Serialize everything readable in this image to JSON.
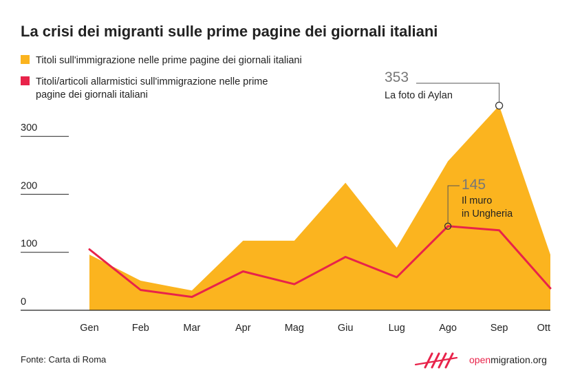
{
  "chart_data": {
    "type": "area",
    "title": "La crisi dei migranti sulle prime pagine dei giornali italiani",
    "categories": [
      "Gen",
      "Feb",
      "Mar",
      "Apr",
      "Mag",
      "Giu",
      "Lug",
      "Ago",
      "Sep",
      "Ott"
    ],
    "series": [
      {
        "name": "Titoli sull'immigrazione nelle prime pagine dei giornali italiani",
        "kind": "area",
        "color": "#fbb41f",
        "values": [
          96,
          51,
          34,
          120,
          120,
          220,
          108,
          257,
          353,
          96
        ]
      },
      {
        "name": "Titoli/articoli allarmistici sull'immigrazione nelle prime pagine dei giornali italiani",
        "kind": "line",
        "color": "#e8234a",
        "values": [
          105,
          35,
          23,
          67,
          45,
          92,
          57,
          145,
          138,
          38
        ]
      }
    ],
    "yticks": [
      "0",
      "100",
      "200",
      "300"
    ],
    "ylim": [
      0,
      360
    ],
    "grid": false,
    "legend_position": "top-left",
    "annotations": [
      {
        "category": "Sep",
        "value_label": "353",
        "text": "La foto di Aylan"
      },
      {
        "category": "Ago",
        "value_label": "145",
        "text_line1": "Il muro",
        "text_line2": "in Ungheria"
      }
    ]
  },
  "legend": {
    "area_label": "Titoli sull'immigrazione nelle prime pagine dei giornali italiani",
    "line_label_1": "Titoli/articoli allarmistici sull'immigrazione nelle prime",
    "line_label_2": "pagine dei giornali italiani"
  },
  "footer": {
    "source": "Fonte: Carta di Roma",
    "brand_open": "open",
    "brand_rest": "migration.org"
  },
  "colors": {
    "area": "#fbb41f",
    "line": "#e8234a",
    "text": "#222222",
    "brand": "#e8234a"
  }
}
